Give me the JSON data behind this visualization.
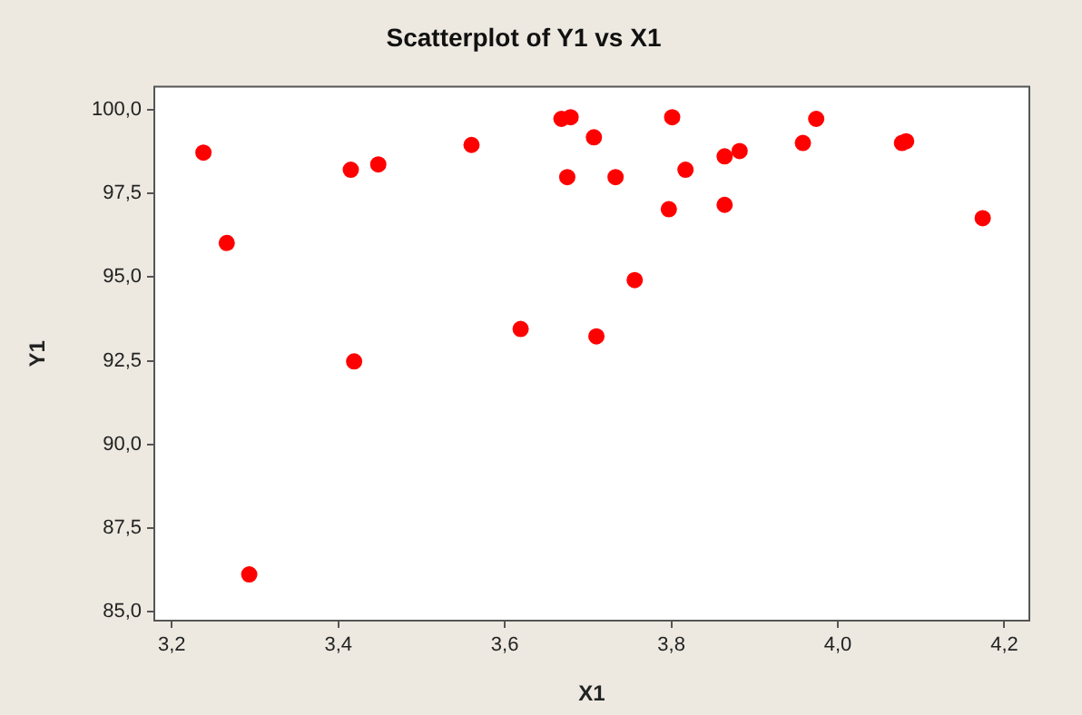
{
  "chart_data": {
    "type": "scatter",
    "title": "Scatterplot of Y1 vs X1",
    "xlabel": "X1",
    "ylabel": "Y1",
    "x": [
      3.238,
      3.266,
      3.293,
      3.415,
      3.419,
      3.448,
      3.56,
      3.619,
      3.668,
      3.679,
      3.707,
      3.675,
      3.733,
      3.801,
      3.817,
      3.864,
      3.882,
      3.797,
      3.864,
      3.756,
      3.71,
      3.958,
      3.974,
      4.077,
      4.082,
      4.174
    ],
    "series": [
      {
        "color": "#ff0000",
        "values": [
          98.72,
          96.02,
          86.11,
          98.21,
          92.48,
          98.37,
          98.95,
          93.45,
          99.73,
          99.78,
          99.18,
          97.99,
          97.99,
          99.78,
          98.21,
          98.61,
          98.77,
          97.03,
          97.16,
          94.91,
          93.23,
          99.01,
          99.73,
          99.01,
          99.06,
          96.76
        ]
      }
    ],
    "marker": "circle",
    "grid": false,
    "legend": false,
    "xlim": [
      3.179,
      4.23
    ],
    "xticks": [
      {
        "value": 3.2,
        "label": "3,2"
      },
      {
        "value": 3.4,
        "label": "3,4"
      },
      {
        "value": 3.6,
        "label": "3,6"
      },
      {
        "value": 3.8,
        "label": "3,8"
      },
      {
        "value": 4.0,
        "label": "4,0"
      },
      {
        "value": 4.2,
        "label": "4,2"
      }
    ],
    "ylim": [
      84.73,
      100.69
    ],
    "yticks": [
      {
        "value": 85,
        "label": "85,0"
      },
      {
        "value": 87.5,
        "label": "87,5"
      },
      {
        "value": 90,
        "label": "90,0"
      },
      {
        "value": 92.5,
        "label": "92,5"
      },
      {
        "value": 95,
        "label": "95,0"
      },
      {
        "value": 97.5,
        "label": "97,5"
      },
      {
        "value": 100,
        "label": "100,0"
      }
    ]
  }
}
